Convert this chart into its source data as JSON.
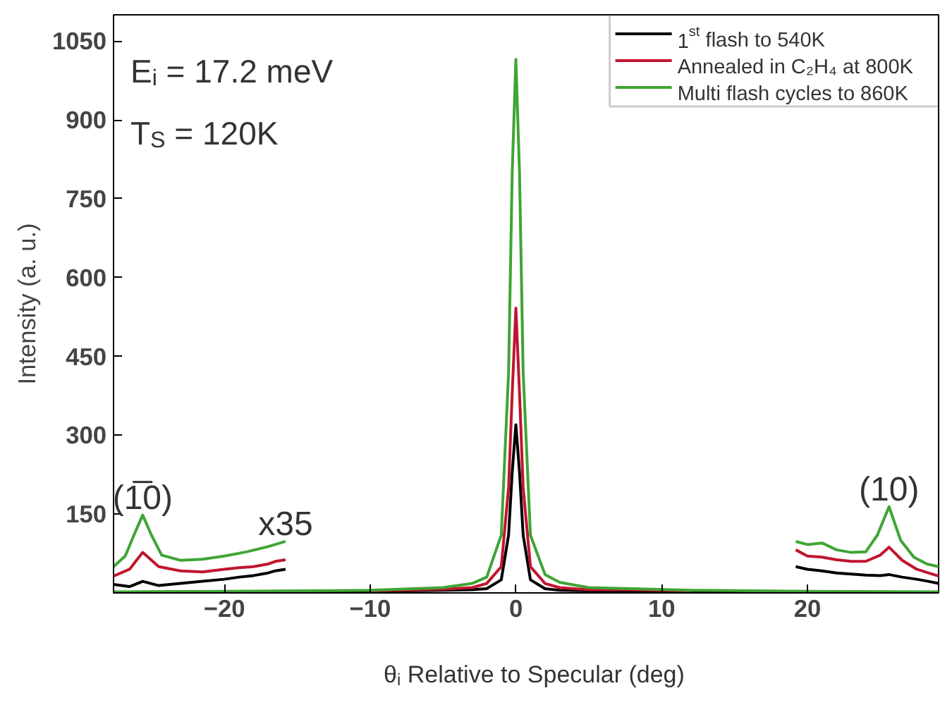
{
  "chart_data": {
    "type": "line",
    "xlabel": "θ$_{i}$ Relative to Specular (deg)",
    "ylabel": "Intensity (a. u.)",
    "xlim": [
      -27.6,
      29
    ],
    "ylim": [
      0,
      1100
    ],
    "xticks": [
      -20,
      -10,
      0,
      10,
      20
    ],
    "yticks": [
      150,
      300,
      450,
      600,
      750,
      900,
      1050
    ],
    "legend": "top right",
    "grid": false,
    "annotations": [
      "E$_{i}$ = 17.2 meV",
      "T$_{S}$ = 120K",
      {
        "text": "(1̅0)",
        "x": -25.6,
        "y": 148
      },
      {
        "text": "(10)",
        "x": 25.6,
        "y": 164
      },
      {
        "text": "x35",
        "x": -15.8,
        "y": 98
      }
    ],
    "series": [
      {
        "name": "1$^{st}$ flash to 540K",
        "color": "#000000",
        "x": [
          -27.6,
          -20,
          -10,
          -5,
          -3,
          -2,
          -1,
          -0.5,
          -0.25,
          0,
          0.25,
          0.5,
          1,
          2,
          3,
          5,
          8,
          12,
          20,
          29
        ],
        "values": [
          1,
          2,
          3,
          5,
          6,
          8,
          25,
          110,
          230,
          320,
          230,
          110,
          25,
          8,
          5,
          4,
          4,
          3,
          2,
          1
        ]
      },
      {
        "name": "Annealed in C₂H₄ at 800K",
        "color": "#c0152f",
        "x": [
          -10,
          -5,
          -3,
          -2,
          -1,
          -0.5,
          -0.25,
          0,
          0.25,
          0.5,
          1,
          2,
          3,
          5,
          8,
          12
        ],
        "values": [
          4,
          7,
          10,
          18,
          50,
          200,
          380,
          542,
          380,
          200,
          50,
          18,
          10,
          6,
          6,
          4
        ]
      },
      {
        "name": "Multi flash cycles to 860K",
        "color": "#3fa535",
        "x": [
          -27.6,
          -20,
          -10,
          -5,
          -3,
          -2,
          -1,
          -0.5,
          -0.25,
          0,
          0.25,
          0.5,
          1,
          2,
          3,
          5,
          8,
          12,
          20,
          29
        ],
        "values": [
          2,
          3,
          5,
          10,
          18,
          30,
          110,
          420,
          800,
          1015,
          800,
          420,
          110,
          35,
          20,
          10,
          8,
          5,
          3,
          2
        ]
      },
      {
        "color": "#000000",
        "x": [
          -27.6,
          -26.5,
          -25.6,
          -24.5,
          -23,
          -21.5,
          -20,
          -19,
          -18,
          -17,
          -16.5,
          -15.8
        ],
        "values": [
          16,
          12,
          22,
          14,
          18,
          22,
          26,
          30,
          33,
          38,
          42,
          45
        ]
      },
      {
        "color": "#c0152f",
        "x": [
          -27.6,
          -26.5,
          -25.6,
          -24.5,
          -23,
          -21.5,
          -20,
          -19,
          -18,
          -17,
          -16.5,
          -15.8
        ],
        "values": [
          32,
          45,
          77,
          50,
          42,
          40,
          45,
          48,
          50,
          55,
          60,
          63
        ]
      },
      {
        "color": "#3fa535",
        "x": [
          -27.6,
          -26.8,
          -26.2,
          -25.6,
          -25,
          -24.3,
          -23,
          -21.5,
          -20,
          -18.5,
          -17,
          -15.8
        ],
        "values": [
          50,
          70,
          110,
          148,
          110,
          72,
          62,
          64,
          70,
          78,
          88,
          98
        ]
      },
      {
        "color": "#000000",
        "x": [
          19.2,
          20,
          21,
          22,
          23,
          24,
          25,
          25.6,
          26.5,
          27.5,
          28.3,
          29
        ],
        "values": [
          50,
          45,
          42,
          38,
          36,
          34,
          33,
          35,
          30,
          26,
          22,
          18
        ]
      },
      {
        "color": "#c0152f",
        "x": [
          19.2,
          20,
          21,
          22,
          23,
          24,
          25,
          25.6,
          26.5,
          27.5,
          28.3,
          29
        ],
        "values": [
          82,
          70,
          68,
          63,
          60,
          60,
          72,
          87,
          62,
          45,
          38,
          32
        ]
      },
      {
        "color": "#3fa535",
        "x": [
          19.2,
          20,
          21,
          22,
          23,
          24,
          24.8,
          25.6,
          26.4,
          27.3,
          28.2,
          29
        ],
        "values": [
          98,
          92,
          95,
          82,
          77,
          78,
          110,
          164,
          100,
          68,
          55,
          50
        ]
      }
    ]
  }
}
